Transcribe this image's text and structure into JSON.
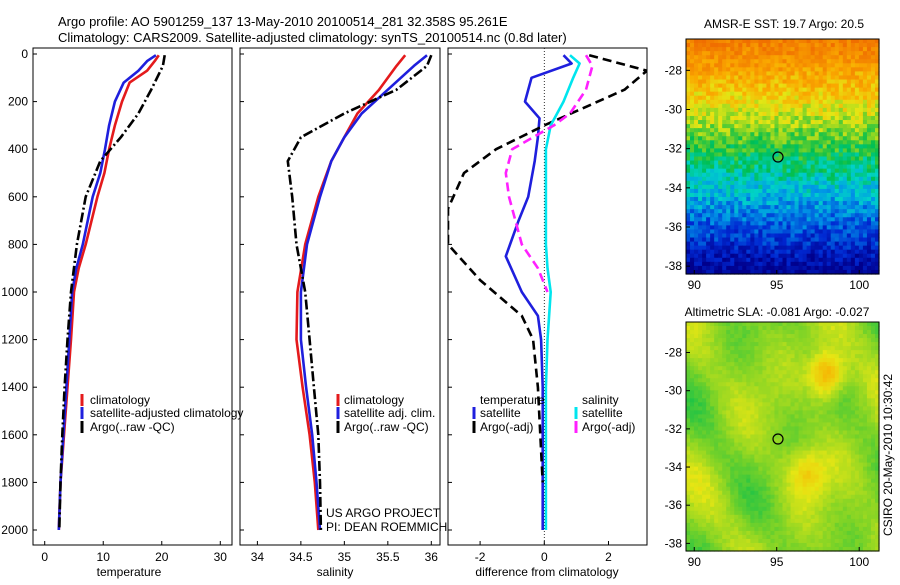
{
  "header": {
    "line1": "Argo profile: AO 5901259_137 13-May-2010 20100514_281 32.358S 95.261E",
    "line2": "Climatology: CARS2009. Satellite-adjusted climatology: synTS_20100514.nc (0.8d later)"
  },
  "footer": {
    "project": "US ARGO PROJECT",
    "pi": "PI: DEAN ROEMMICH",
    "credit": "CSIRO 20-May-2010 10:30:42"
  },
  "colors": {
    "climatology": "#e41a1c",
    "satellite": "#1f1fdd",
    "argo": "#000000",
    "satellite_salinity": "#00e5ee",
    "argo_salinity": "#ff20ff"
  },
  "chart_data": [
    {
      "type": "line",
      "xlabel": "temperature",
      "ylabel": "",
      "xlim": [
        -2,
        32
      ],
      "ylim": [
        2050,
        0
      ],
      "xticks": [
        0,
        10,
        20,
        30
      ],
      "yticks": [
        0,
        200,
        400,
        600,
        800,
        1000,
        1200,
        1400,
        1600,
        1800,
        2000
      ],
      "legend": {
        "placement": "bottom-right",
        "entries": [
          "climatology",
          "satellite-adjusted climatology",
          "Argo(..raw -QC)"
        ]
      },
      "series": [
        {
          "name": "climatology",
          "style": "solid",
          "color": "#e41a1c",
          "x": [
            19.5,
            18.8,
            17.5,
            14.5,
            13.2,
            12.0,
            11.0,
            10.2,
            9.0,
            7.0,
            5.8,
            5.0,
            4.5,
            3.9,
            3.3,
            2.7,
            2.4
          ],
          "y": [
            5,
            30,
            70,
            120,
            200,
            300,
            400,
            500,
            600,
            800,
            900,
            1000,
            1200,
            1400,
            1600,
            1800,
            2000
          ]
        },
        {
          "name": "satellite-adjusted climatology",
          "style": "solid",
          "color": "#1f1fdd",
          "x": [
            19.0,
            17.5,
            16.0,
            13.5,
            12.0,
            11.0,
            10.3,
            9.5,
            8.2,
            6.5,
            5.4,
            4.7,
            4.2,
            3.7,
            3.2,
            2.7,
            2.4
          ],
          "y": [
            5,
            30,
            70,
            120,
            200,
            300,
            400,
            500,
            600,
            800,
            900,
            1000,
            1200,
            1400,
            1600,
            1800,
            2000
          ]
        },
        {
          "name": "Argo(..raw -QC)",
          "style": "dashdot",
          "color": "#000000",
          "x": [
            20.5,
            20.2,
            18.2,
            16.0,
            13.0,
            9.5,
            7.0,
            5.5,
            4.5,
            3.9,
            3.4,
            3.0,
            2.7,
            2.5
          ],
          "y": [
            5,
            50,
            150,
            250,
            350,
            450,
            600,
            800,
            1000,
            1200,
            1400,
            1600,
            1800,
            2000
          ]
        }
      ]
    },
    {
      "type": "line",
      "xlabel": "salinity",
      "ylabel": "",
      "xlim": [
        33.8,
        36.1
      ],
      "ylim": [
        2050,
        0
      ],
      "xticks": [
        34,
        34.5,
        35,
        35.5,
        36
      ],
      "legend": {
        "placement": "bottom-right",
        "entries": [
          "climatology",
          "satellite adj. clim.",
          "Argo(..raw -QC)"
        ]
      },
      "series": [
        {
          "name": "climatology",
          "style": "solid",
          "color": "#e41a1c",
          "x": [
            35.7,
            35.6,
            35.4,
            35.15,
            35.0,
            34.85,
            34.7,
            34.55,
            34.46,
            34.45,
            34.52,
            34.6,
            34.66,
            34.7
          ],
          "y": [
            5,
            50,
            150,
            250,
            350,
            450,
            600,
            800,
            1000,
            1200,
            1400,
            1600,
            1800,
            2000
          ]
        },
        {
          "name": "satellite adj. clim.",
          "style": "solid",
          "color": "#1f1fdd",
          "x": [
            35.95,
            35.8,
            35.5,
            35.2,
            35.0,
            34.85,
            34.72,
            34.57,
            34.5,
            34.5,
            34.56,
            34.63,
            34.68,
            34.72
          ],
          "y": [
            5,
            50,
            150,
            250,
            350,
            450,
            600,
            800,
            1000,
            1200,
            1400,
            1600,
            1800,
            2000
          ]
        },
        {
          "name": "Argo(..raw -QC)",
          "style": "dashdot",
          "color": "#000000",
          "x": [
            36.0,
            35.95,
            35.6,
            35.0,
            34.5,
            34.35,
            34.4,
            34.45,
            34.55,
            34.6,
            34.65,
            34.7,
            34.72,
            34.73
          ],
          "y": [
            5,
            50,
            150,
            250,
            350,
            450,
            600,
            800,
            1000,
            1200,
            1400,
            1600,
            1800,
            2000
          ]
        }
      ]
    },
    {
      "type": "line",
      "xlabel": "difference from climatology",
      "ylabel": "",
      "xlim": [
        -3,
        3.2
      ],
      "ylim": [
        2050,
        0
      ],
      "xticks": [
        -2,
        0,
        2
      ],
      "legend": {
        "placement": "bottom-right",
        "temperature_title": "temperature",
        "salinity_title": "salinity",
        "entries": [
          "satellite",
          "Argo(-adj)",
          "satellite",
          "Argo(-adj)"
        ]
      },
      "series": [
        {
          "name": "satellite",
          "group": "temperature",
          "style": "solid",
          "color": "#1f1fdd",
          "x": [
            0.6,
            0.85,
            -0.4,
            -0.6,
            -0.15,
            -0.2,
            -0.3,
            -0.5,
            -0.8,
            -1.2,
            -0.7,
            -0.2,
            -0.1,
            -0.05,
            -0.05,
            -0.05
          ],
          "y": [
            5,
            40,
            100,
            200,
            270,
            350,
            450,
            600,
            700,
            850,
            1000,
            1100,
            1200,
            1400,
            1600,
            2000
          ]
        },
        {
          "name": "Argo(-adj)",
          "group": "temperature",
          "style": "dashed",
          "color": "#000000",
          "x": [
            1.4,
            3.2,
            2.5,
            0.0,
            -1.5,
            -2.5,
            -3.0,
            -3.0,
            -2.0,
            -0.7,
            -0.35,
            -0.2,
            -0.05
          ],
          "y": [
            5,
            70,
            150,
            300,
            400,
            500,
            650,
            800,
            950,
            1100,
            1200,
            1400,
            1800
          ]
        },
        {
          "name": "satellite",
          "group": "salinity",
          "style": "solid",
          "color": "#00e5ee",
          "x": [
            0.8,
            1.1,
            0.9,
            0.6,
            0.2,
            0.05,
            0.05,
            0.05,
            0.1,
            0.2,
            0.15,
            0.1,
            0.05,
            0.05,
            0.05
          ],
          "y": [
            5,
            40,
            100,
            200,
            300,
            400,
            600,
            800,
            900,
            1000,
            1100,
            1200,
            1400,
            1600,
            2000
          ]
        },
        {
          "name": "Argo(-adj)",
          "group": "salinity",
          "style": "dashed",
          "color": "#ff20ff",
          "x": [
            1.3,
            1.5,
            1.3,
            0.8,
            0.3,
            -1.0,
            -1.2,
            -1.1,
            -0.7,
            -0.2,
            0.1
          ],
          "y": [
            5,
            50,
            150,
            250,
            300,
            400,
            500,
            600,
            800,
            900,
            1000
          ]
        }
      ]
    },
    {
      "type": "heatmap",
      "title": "AMSR-E SST: 19.7 Argo: 20.5",
      "xticks": [
        90,
        95,
        100
      ],
      "yticks": [
        -28,
        -30,
        -32,
        -34,
        -36,
        -38
      ],
      "xlim": [
        89.5,
        101.2
      ],
      "ylim": [
        -38.4,
        -26.4
      ],
      "marker": {
        "lon": 95.261,
        "lat": -32.358
      }
    },
    {
      "type": "heatmap",
      "title": "Altimetric SLA: -0.081 Argo: -0.027",
      "xticks": [
        90,
        95,
        100
      ],
      "yticks": [
        -28,
        -30,
        -32,
        -34,
        -36,
        -38
      ],
      "xlim": [
        89.5,
        101.2
      ],
      "ylim": [
        -38.4,
        -26.4
      ],
      "marker": {
        "lon": 95.261,
        "lat": -32.358
      }
    }
  ]
}
